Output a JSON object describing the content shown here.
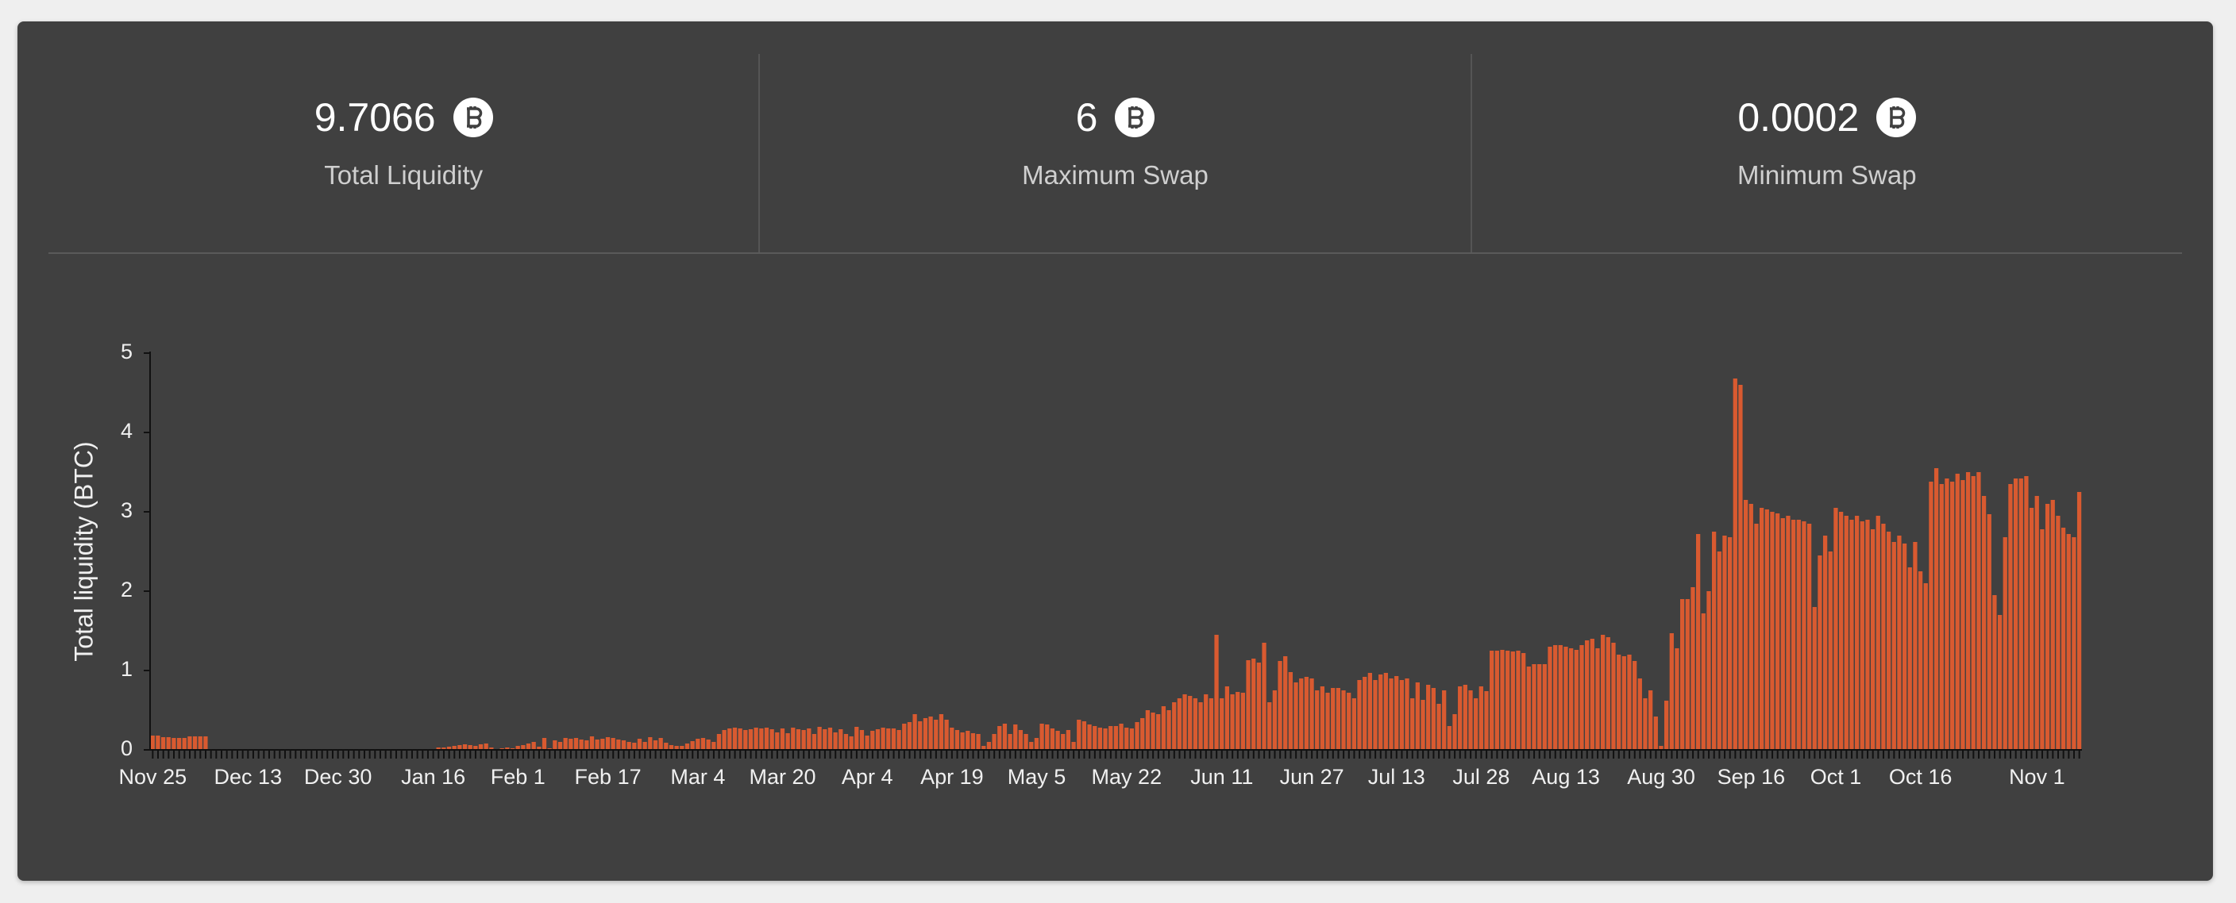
{
  "stats": [
    {
      "value": 9.7066,
      "label": "Total Liquidity"
    },
    {
      "value": 6,
      "label": "Maximum Swap"
    },
    {
      "value": 0.0002,
      "label": "Minimum Swap"
    }
  ],
  "chart_data": {
    "type": "bar",
    "y_label": "Total liquidity (BTC)",
    "color": "#d95a30",
    "ylim": [
      0,
      5
    ],
    "yticks": [
      0,
      1,
      2,
      3,
      4,
      5
    ],
    "categories": [
      "Nov 25",
      null,
      null,
      null,
      null,
      null,
      null,
      null,
      null,
      null,
      null,
      null,
      null,
      null,
      null,
      null,
      null,
      null,
      "Dec 13",
      null,
      null,
      null,
      null,
      null,
      null,
      null,
      null,
      null,
      null,
      null,
      null,
      null,
      null,
      null,
      null,
      "Dec 30",
      null,
      null,
      null,
      null,
      null,
      null,
      null,
      null,
      null,
      null,
      null,
      null,
      null,
      null,
      null,
      null,
      null,
      "Jan 16",
      null,
      null,
      null,
      null,
      null,
      null,
      null,
      null,
      null,
      null,
      null,
      null,
      null,
      null,
      null,
      "Feb 1",
      null,
      null,
      null,
      null,
      null,
      null,
      null,
      null,
      null,
      null,
      null,
      null,
      null,
      null,
      null,
      null,
      "Feb 17",
      null,
      null,
      null,
      null,
      null,
      null,
      null,
      null,
      null,
      null,
      null,
      null,
      null,
      null,
      null,
      null,
      "Mar 4",
      null,
      null,
      null,
      null,
      null,
      null,
      null,
      null,
      null,
      null,
      null,
      null,
      null,
      null,
      null,
      "Mar 20",
      null,
      null,
      null,
      null,
      null,
      null,
      null,
      null,
      null,
      null,
      null,
      null,
      null,
      null,
      null,
      "Apr 4",
      null,
      null,
      null,
      null,
      null,
      null,
      null,
      null,
      null,
      null,
      null,
      null,
      null,
      null,
      null,
      "Apr 19",
      null,
      null,
      null,
      null,
      null,
      null,
      null,
      null,
      null,
      null,
      null,
      null,
      null,
      null,
      null,
      "May 5",
      null,
      null,
      null,
      null,
      null,
      null,
      null,
      null,
      null,
      null,
      null,
      null,
      null,
      null,
      null,
      null,
      "May 22",
      null,
      null,
      null,
      null,
      null,
      null,
      null,
      null,
      null,
      null,
      null,
      null,
      null,
      null,
      null,
      null,
      null,
      "Jun 11",
      null,
      null,
      null,
      null,
      null,
      null,
      null,
      null,
      null,
      null,
      null,
      null,
      null,
      null,
      null,
      null,
      "Jun 27",
      null,
      null,
      null,
      null,
      null,
      null,
      null,
      null,
      null,
      null,
      null,
      null,
      null,
      null,
      null,
      "Jul 13",
      null,
      null,
      null,
      null,
      null,
      null,
      null,
      null,
      null,
      null,
      null,
      null,
      null,
      null,
      null,
      "Jul 28",
      null,
      null,
      null,
      null,
      null,
      null,
      null,
      null,
      null,
      null,
      null,
      null,
      null,
      null,
      null,
      "Aug 13",
      null,
      null,
      null,
      null,
      null,
      null,
      null,
      null,
      null,
      null,
      null,
      null,
      null,
      null,
      null,
      null,
      null,
      "Aug 30",
      null,
      null,
      null,
      null,
      null,
      null,
      null,
      null,
      null,
      null,
      null,
      null,
      null,
      null,
      null,
      null,
      "Sep 16",
      null,
      null,
      null,
      null,
      null,
      null,
      null,
      null,
      null,
      null,
      null,
      null,
      null,
      null,
      null,
      "Oct 1",
      null,
      null,
      null,
      null,
      null,
      null,
      null,
      null,
      null,
      null,
      null,
      null,
      null,
      null,
      null,
      "Oct 16",
      null,
      null,
      null,
      null,
      null,
      null,
      null,
      null,
      null,
      null,
      null,
      null,
      null,
      null,
      null,
      null,
      null,
      null,
      null,
      null,
      null,
      "Nov 1",
      null,
      null,
      null,
      null,
      null,
      null,
      null,
      null
    ],
    "values": [
      0.18,
      0.18,
      0.16,
      0.16,
      0.15,
      0.15,
      0.15,
      0.17,
      0.17,
      0.17,
      0.17,
      0,
      0,
      0,
      0,
      0,
      0,
      0,
      0,
      0,
      0,
      0,
      0,
      0,
      0,
      0,
      0,
      0,
      0,
      0,
      0,
      0,
      0,
      0,
      0,
      0,
      0,
      0,
      0,
      0,
      0,
      0,
      0,
      0,
      0,
      0,
      0,
      0,
      0,
      0,
      0,
      0,
      0,
      0,
      0.03,
      0.03,
      0.04,
      0.05,
      0.06,
      0.07,
      0.06,
      0.05,
      0.07,
      0.08,
      0.03,
      0,
      0.02,
      0.03,
      0.02,
      0.05,
      0.06,
      0.08,
      0.1,
      0.04,
      0.15,
      0.02,
      0.12,
      0.1,
      0.15,
      0.14,
      0.15,
      0.13,
      0.12,
      0.17,
      0.13,
      0.14,
      0.16,
      0.15,
      0.13,
      0.12,
      0.1,
      0.09,
      0.14,
      0.1,
      0.16,
      0.12,
      0.15,
      0.09,
      0.06,
      0.05,
      0.05,
      0.08,
      0.11,
      0.14,
      0.15,
      0.13,
      0.1,
      0.2,
      0.25,
      0.27,
      0.28,
      0.27,
      0.25,
      0.26,
      0.28,
      0.27,
      0.28,
      0.26,
      0.22,
      0.27,
      0.21,
      0.28,
      0.26,
      0.25,
      0.27,
      0.2,
      0.29,
      0.26,
      0.28,
      0.22,
      0.26,
      0.2,
      0.17,
      0.29,
      0.25,
      0.18,
      0.24,
      0.26,
      0.28,
      0.27,
      0.27,
      0.25,
      0.33,
      0.35,
      0.45,
      0.36,
      0.4,
      0.42,
      0.38,
      0.45,
      0.38,
      0.28,
      0.25,
      0.22,
      0.24,
      0.21,
      0.2,
      0.05,
      0.1,
      0.2,
      0.3,
      0.33,
      0.2,
      0.32,
      0.25,
      0.2,
      0.1,
      0.15,
      0.33,
      0.32,
      0.27,
      0.24,
      0.2,
      0.25,
      0.1,
      0.38,
      0.36,
      0.32,
      0.3,
      0.28,
      0.27,
      0.3,
      0.3,
      0.33,
      0.28,
      0.27,
      0.35,
      0.4,
      0.5,
      0.47,
      0.45,
      0.55,
      0.5,
      0.6,
      0.65,
      0.7,
      0.68,
      0.65,
      0.6,
      0.7,
      0.65,
      1.45,
      0.65,
      0.8,
      0.7,
      0.73,
      0.72,
      1.13,
      1.15,
      1.1,
      1.35,
      0.6,
      0.75,
      1.12,
      1.18,
      0.98,
      0.85,
      0.9,
      0.92,
      0.9,
      0.75,
      0.8,
      0.72,
      0.78,
      0.78,
      0.75,
      0.72,
      0.65,
      0.88,
      0.92,
      0.97,
      0.88,
      0.95,
      0.97,
      0.9,
      0.93,
      0.88,
      0.9,
      0.65,
      0.85,
      0.63,
      0.82,
      0.78,
      0.58,
      0.75,
      0.3,
      0.45,
      0.8,
      0.82,
      0.75,
      0.65,
      0.8,
      0.74,
      1.25,
      1.25,
      1.26,
      1.25,
      1.24,
      1.25,
      1.22,
      1.05,
      1.08,
      1.08,
      1.08,
      1.3,
      1.32,
      1.32,
      1.3,
      1.28,
      1.26,
      1.32,
      1.38,
      1.4,
      1.28,
      1.45,
      1.42,
      1.35,
      1.2,
      1.18,
      1.2,
      1.12,
      0.9,
      0.65,
      0.75,
      0.42,
      0.05,
      0.62,
      1.47,
      1.28,
      1.9,
      1.9,
      2.05,
      2.72,
      1.72,
      2.0,
      2.75,
      2.5,
      2.7,
      2.68,
      4.68,
      4.6,
      3.15,
      3.1,
      2.85,
      3.05,
      3.03,
      3.0,
      2.98,
      2.92,
      2.95,
      2.9,
      2.9,
      2.88,
      2.85,
      1.8,
      2.45,
      2.7,
      2.5,
      3.05,
      3.0,
      2.95,
      2.9,
      2.95,
      2.88,
      2.9,
      2.78,
      2.95,
      2.85,
      2.75,
      2.62,
      2.7,
      2.6,
      2.3,
      2.62,
      2.25,
      2.1,
      3.38,
      3.55,
      3.35,
      3.42,
      3.38,
      3.48,
      3.4,
      3.5,
      3.45,
      3.5,
      3.2,
      2.97,
      1.95,
      1.7,
      2.68,
      3.35,
      3.42,
      3.42,
      3.45,
      3.05,
      3.2,
      2.78,
      3.1,
      3.15,
      2.95,
      2.8,
      2.72,
      2.68,
      3.25
    ]
  }
}
